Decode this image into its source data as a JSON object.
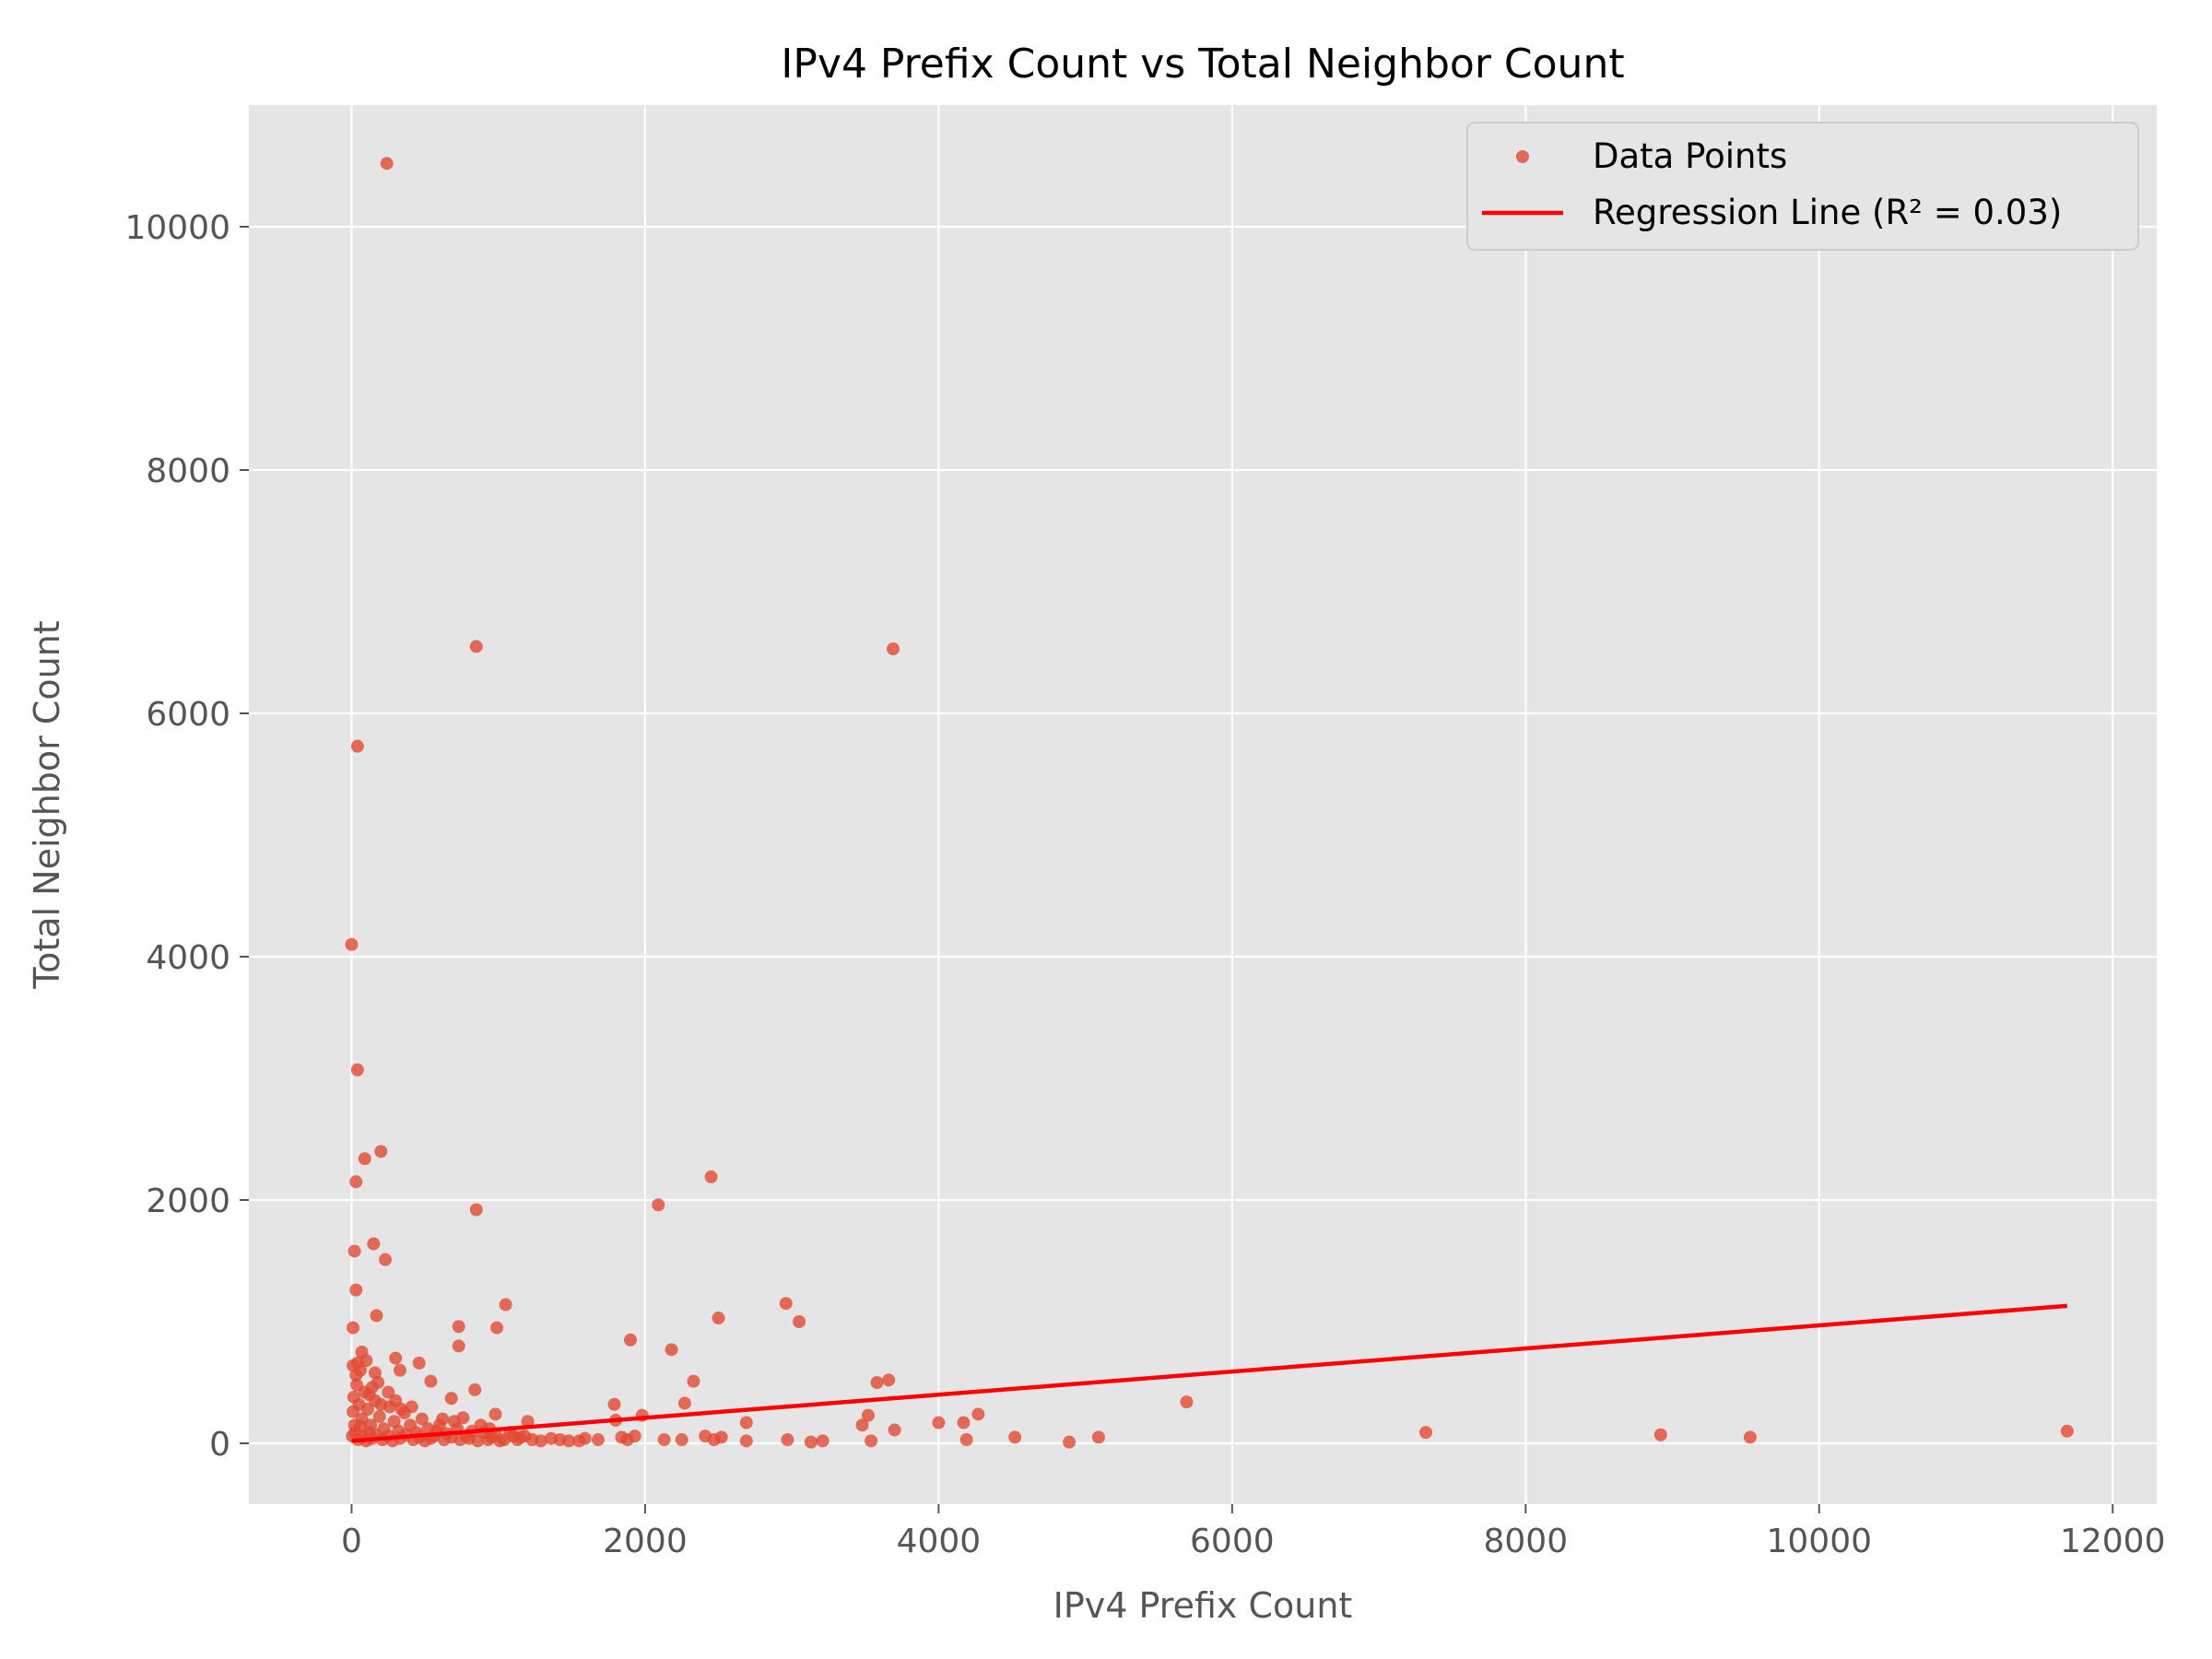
{
  "chart_data": {
    "type": "scatter",
    "title": "IPv4 Prefix Count vs Total Neighbor Count",
    "xlabel": "IPv4 Prefix Count",
    "ylabel": "Total Neighbor Count",
    "xlim": [
      -700,
      12300
    ],
    "ylim": [
      -500,
      11000
    ],
    "xticks": [
      0,
      2000,
      4000,
      6000,
      8000,
      10000,
      12000
    ],
    "yticks": [
      0,
      2000,
      4000,
      6000,
      8000,
      10000
    ],
    "xtick_labels": [
      "0",
      "2000",
      "4000",
      "6000",
      "8000",
      "10000",
      "12000"
    ],
    "ytick_labels": [
      "0",
      "2000",
      "4000",
      "6000",
      "8000",
      "10000"
    ],
    "grid": true,
    "legend_position": "top-right",
    "colors": {
      "points": "#e24a33",
      "regression": "#ff0000",
      "plot_bg": "#e5e5e5",
      "grid": "#ffffff"
    },
    "series": [
      {
        "name": "Data Points",
        "kind": "scatter",
        "points": [
          [
            240,
            10520
          ],
          [
            850,
            6550
          ],
          [
            3690,
            6530
          ],
          [
            40,
            5730
          ],
          [
            0,
            4100
          ],
          [
            40,
            3070
          ],
          [
            200,
            2400
          ],
          [
            90,
            2340
          ],
          [
            30,
            2150
          ],
          [
            2450,
            2190
          ],
          [
            2090,
            1960
          ],
          [
            850,
            1920
          ],
          [
            150,
            1640
          ],
          [
            20,
            1580
          ],
          [
            230,
            1510
          ],
          [
            30,
            1260
          ],
          [
            1050,
            1140
          ],
          [
            2960,
            1150
          ],
          [
            170,
            1050
          ],
          [
            3050,
            1000
          ],
          [
            2500,
            1030
          ],
          [
            10,
            950
          ],
          [
            730,
            960
          ],
          [
            990,
            950
          ],
          [
            1900,
            850
          ],
          [
            730,
            800
          ],
          [
            2180,
            770
          ],
          [
            70,
            750
          ],
          [
            300,
            700
          ],
          [
            100,
            680
          ],
          [
            10,
            640
          ],
          [
            460,
            660
          ],
          [
            160,
            580
          ],
          [
            330,
            600
          ],
          [
            30,
            560
          ],
          [
            540,
            510
          ],
          [
            2330,
            510
          ],
          [
            3580,
            500
          ],
          [
            3660,
            520
          ],
          [
            840,
            440
          ],
          [
            5690,
            340
          ],
          [
            2270,
            330
          ],
          [
            680,
            370
          ],
          [
            1790,
            320
          ],
          [
            4270,
            240
          ],
          [
            3520,
            230
          ],
          [
            1980,
            230
          ],
          [
            980,
            240
          ],
          [
            2690,
            170
          ],
          [
            4000,
            170
          ],
          [
            4170,
            170
          ],
          [
            3480,
            150
          ],
          [
            1800,
            190
          ],
          [
            1200,
            180
          ],
          [
            3700,
            110
          ],
          [
            7320,
            90
          ],
          [
            8920,
            70
          ],
          [
            9530,
            50
          ],
          [
            11690,
            100
          ],
          [
            4520,
            50
          ],
          [
            5090,
            50
          ],
          [
            4890,
            10
          ],
          [
            4190,
            30
          ],
          [
            3540,
            20
          ],
          [
            3210,
            20
          ],
          [
            3130,
            10
          ],
          [
            2970,
            30
          ],
          [
            2690,
            20
          ],
          [
            2520,
            50
          ],
          [
            2470,
            30
          ],
          [
            2410,
            60
          ],
          [
            2250,
            30
          ],
          [
            2130,
            30
          ],
          [
            1930,
            60
          ],
          [
            1880,
            30
          ],
          [
            1840,
            50
          ],
          [
            1680,
            30
          ],
          [
            1590,
            40
          ],
          [
            1550,
            20
          ],
          [
            1480,
            20
          ],
          [
            1420,
            30
          ],
          [
            1360,
            40
          ],
          [
            1290,
            20
          ],
          [
            1230,
            30
          ],
          [
            1150,
            50
          ],
          [
            1100,
            60
          ],
          [
            1040,
            30
          ],
          [
            950,
            50
          ],
          [
            900,
            90
          ],
          [
            820,
            100
          ],
          [
            780,
            60
          ],
          [
            720,
            120
          ],
          [
            650,
            80
          ],
          [
            600,
            150
          ],
          [
            560,
            60
          ],
          [
            520,
            120
          ],
          [
            480,
            200
          ],
          [
            440,
            90
          ],
          [
            400,
            150
          ],
          [
            360,
            250
          ],
          [
            320,
            100
          ],
          [
            290,
            180
          ],
          [
            260,
            300
          ],
          [
            220,
            120
          ],
          [
            190,
            220
          ],
          [
            160,
            350
          ],
          [
            130,
            150
          ],
          [
            110,
            280
          ],
          [
            90,
            420
          ],
          [
            70,
            200
          ],
          [
            50,
            320
          ],
          [
            35,
            480
          ],
          [
            20,
            150
          ],
          [
            10,
            260
          ],
          [
            5,
            60
          ],
          [
            15,
            380
          ],
          [
            25,
            90
          ],
          [
            45,
            30
          ],
          [
            60,
            140
          ],
          [
            80,
            60
          ],
          [
            100,
            20
          ],
          [
            120,
            90
          ],
          [
            140,
            40
          ],
          [
            170,
            70
          ],
          [
            210,
            30
          ],
          [
            250,
            60
          ],
          [
            280,
            20
          ],
          [
            330,
            40
          ],
          [
            370,
            70
          ],
          [
            420,
            30
          ],
          [
            460,
            50
          ],
          [
            500,
            20
          ],
          [
            540,
            40
          ],
          [
            580,
            100
          ],
          [
            630,
            30
          ],
          [
            680,
            50
          ],
          [
            740,
            30
          ],
          [
            800,
            40
          ],
          [
            860,
            20
          ],
          [
            930,
            30
          ],
          [
            980,
            70
          ],
          [
            1010,
            20
          ],
          [
            1080,
            90
          ],
          [
            1130,
            30
          ],
          [
            1180,
            60
          ],
          [
            620,
            200
          ],
          [
            700,
            180
          ],
          [
            760,
            210
          ],
          [
            880,
            150
          ],
          [
            940,
            120
          ],
          [
            300,
            350
          ],
          [
            340,
            280
          ],
          [
            410,
            300
          ],
          [
            250,
            420
          ],
          [
            180,
            500
          ],
          [
            120,
            400
          ],
          [
            60,
            600
          ],
          [
            40,
            660
          ],
          [
            140,
            460
          ],
          [
            200,
            320
          ]
        ]
      },
      {
        "name": "Regression Line (R² = 0.03)",
        "kind": "line",
        "points": [
          [
            0,
            20
          ],
          [
            11690,
            1130
          ]
        ]
      }
    ]
  }
}
